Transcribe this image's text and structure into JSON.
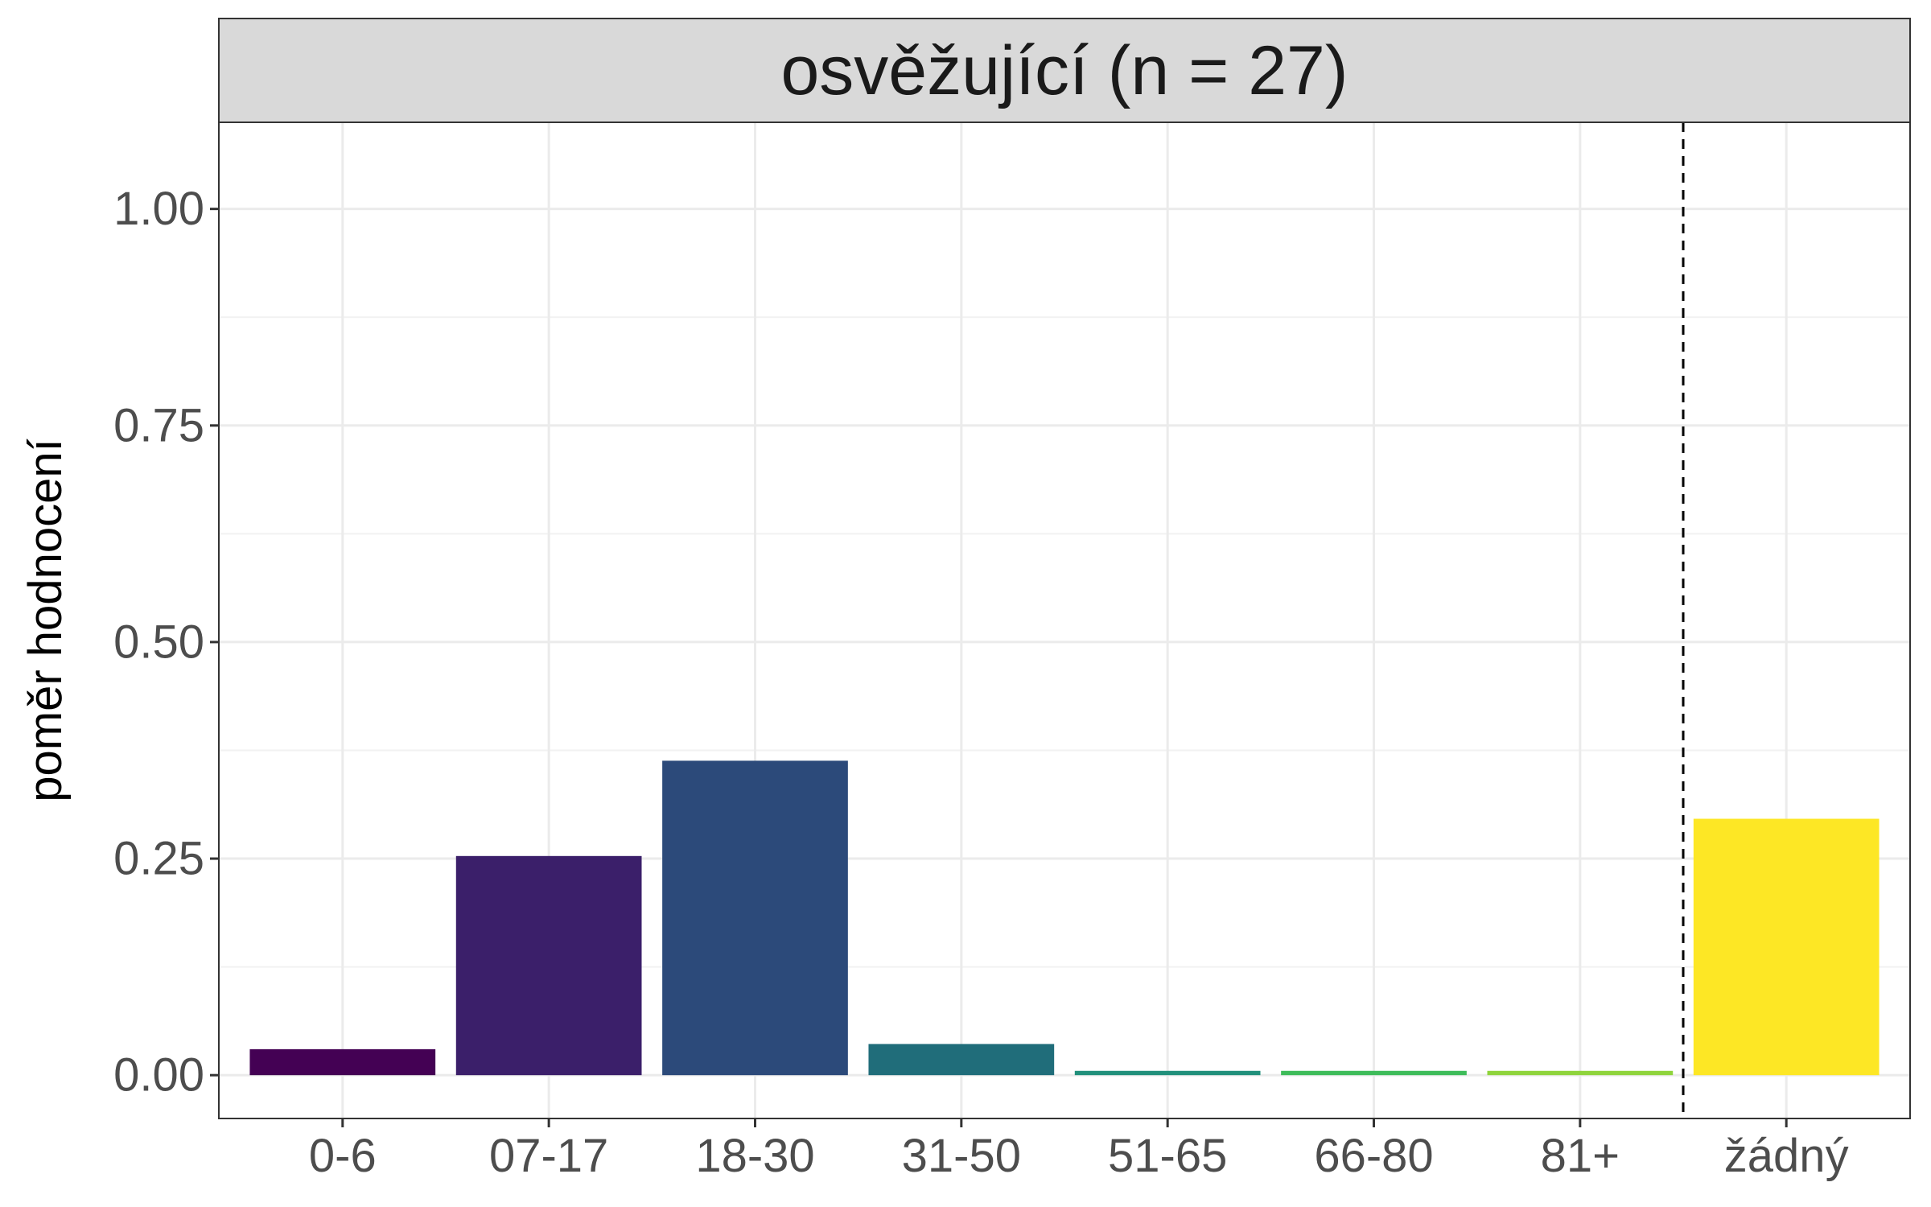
{
  "chart_data": {
    "type": "bar",
    "title": "",
    "facet_label": "osvěžující (n = 27)",
    "xlabel": "",
    "ylabel": "poměr hodnocení",
    "categories": [
      "0-6",
      "07-17",
      "18-30",
      "31-50",
      "51-65",
      "66-80",
      "81+",
      "žádný"
    ],
    "values": [
      0.03,
      0.253,
      0.363,
      0.036,
      0.005,
      0.005,
      0.005,
      0.296
    ],
    "colors": [
      "#440154",
      "#3b1f6a",
      "#2c4a7a",
      "#206d7a",
      "#21907b",
      "#3ebc5a",
      "#8fd43c",
      "#fde725"
    ],
    "ylim": [
      -0.05,
      1.1
    ],
    "yticks": [
      0.0,
      0.25,
      0.5,
      0.75,
      1.0
    ],
    "ytick_labels": [
      "0.00",
      "0.25",
      "0.50",
      "0.75",
      "1.00"
    ],
    "grid": true,
    "reference_line": {
      "style": "dashed",
      "between": [
        "81+",
        "žádný"
      ]
    }
  }
}
